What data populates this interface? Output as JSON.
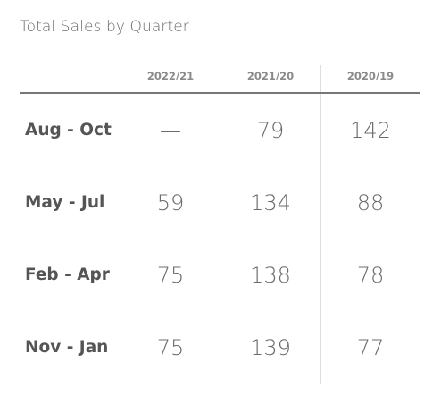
{
  "chart_data": {
    "type": "table",
    "title": "Total Sales by Quarter",
    "columns": [
      "2022/21",
      "2021/20",
      "2020/19"
    ],
    "rows": [
      {
        "label": "Aug - Oct",
        "values": [
          "—",
          "79",
          "142"
        ]
      },
      {
        "label": "May - Jul",
        "values": [
          "59",
          "134",
          "88"
        ]
      },
      {
        "label": "Feb - Apr",
        "values": [
          "75",
          "138",
          "78"
        ]
      },
      {
        "label": "Nov - Jan",
        "values": [
          "75",
          "139",
          "77"
        ]
      }
    ]
  },
  "colors": {
    "text": "#555555",
    "header_text": "#8a8a8a",
    "rule": "#777777",
    "gridline": "#dedede"
  }
}
